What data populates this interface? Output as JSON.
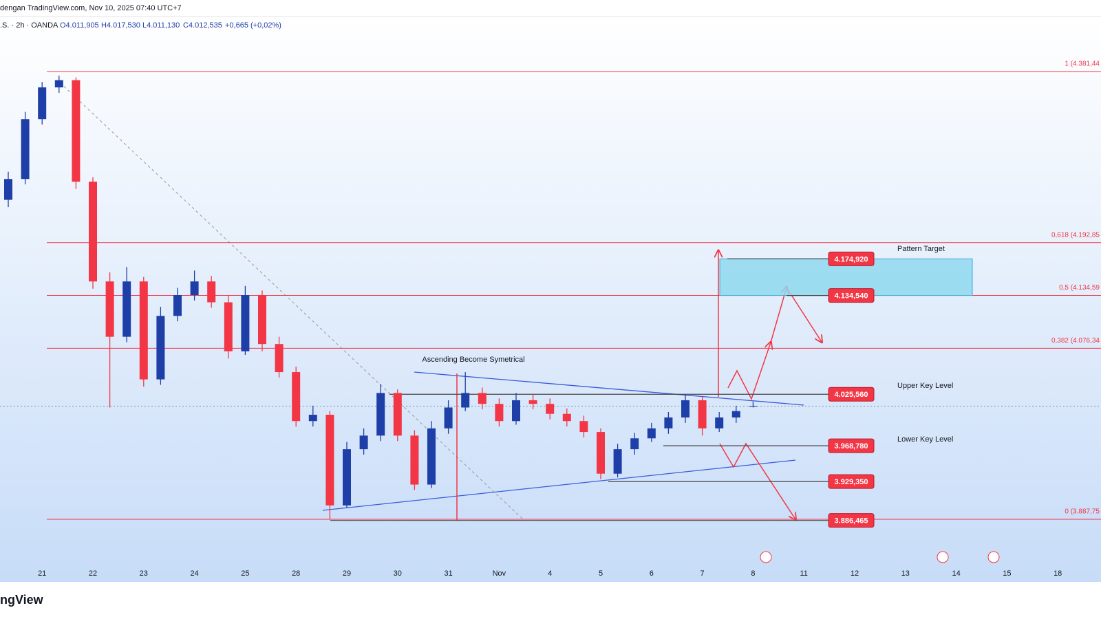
{
  "header": {
    "source": "dengan TradingView.com, Nov 10, 2025 07:40 UTC+7",
    "symbol": ".S. · 2h · OANDA",
    "open": "O4.011,905",
    "high": "H4.017,530",
    "low": "L4.011,130",
    "close": "C4.012,535",
    "change": "+0,665 (+0,02%)"
  },
  "chart_data": {
    "type": "candlestick",
    "xtick_labels": [
      "21",
      "22",
      "23",
      "24",
      "25",
      "28",
      "29",
      "30",
      "31",
      "Nov",
      "4",
      "5",
      "6",
      "7",
      "8",
      "11",
      "12",
      "13",
      "14",
      "15",
      "18"
    ],
    "open": [
      4240,
      4263,
      4329,
      4364,
      4372,
      4260,
      4150,
      4089,
      4150,
      4042,
      4112,
      4135,
      4150,
      4127,
      4073,
      4135,
      4081,
      4050,
      3996,
      4003,
      3903,
      3965,
      3980,
      4027,
      3980,
      3926,
      3988,
      4011,
      4027,
      4015,
      3996,
      4019,
      4015,
      4004,
      3996,
      3984,
      3938,
      3965,
      3977,
      3988,
      4000,
      4019,
      3988,
      4000,
      4011.905
    ],
    "high": [
      4271,
      4337,
      4370,
      4377,
      4375,
      4265,
      4160,
      4166,
      4155,
      4122,
      4143,
      4162,
      4156,
      4135,
      4145,
      4140,
      4089,
      4056,
      4013,
      4007,
      3973,
      3988,
      4037,
      4031,
      3986,
      3996,
      4019,
      4050,
      4033,
      4021,
      4027,
      4025,
      4021,
      4010,
      4002,
      3988,
      3971,
      3983,
      3994,
      4006,
      4025,
      4023,
      4006,
      4013,
      4017.53
    ],
    "low": [
      4232,
      4257,
      4323,
      4358,
      4252,
      4142,
      4011,
      4083,
      4034,
      4036,
      4106,
      4129,
      4121,
      4065,
      4069,
      4073,
      4044,
      3990,
      3990,
      3887.75,
      3900,
      3959,
      3974,
      3974,
      3920,
      3922,
      3982,
      4007,
      4009,
      3990,
      3992,
      4009,
      3998,
      3990,
      3978,
      3932,
      3934,
      3959,
      3973,
      3982,
      3994,
      3980,
      3984,
      3994,
      4011.13
    ],
    "close": [
      4263,
      4329,
      4364,
      4372,
      4260,
      4150,
      4089,
      4150,
      4042,
      4112,
      4135,
      4150,
      4127,
      4073,
      4135,
      4081,
      4050,
      3996,
      4003,
      3903,
      3965,
      3980,
      4027,
      3980,
      3926,
      3988,
      4011,
      4027,
      4015,
      3996,
      4019,
      4015,
      4004,
      3996,
      3984,
      3938,
      3965,
      3977,
      3988,
      4000,
      4019,
      3988,
      4000,
      4007,
      4012.535
    ],
    "up_color": "#1f3fa8",
    "down_color": "#f23645",
    "ylim": [
      3833.5,
      4421.7
    ],
    "fib_levels": [
      {
        "value": 4381.44,
        "label": "1 (4.381,44"
      },
      {
        "value": 4192.85,
        "label": "0,618 (4.192,85"
      },
      {
        "value": 4134.59,
        "label": "0,5 (4.134,59"
      },
      {
        "value": 4076.34,
        "label": "0,382 (4.076,34"
      },
      {
        "value": 3887.75,
        "label": "0 (3.887,75"
      }
    ],
    "key_levels": [
      {
        "value": 4174.92,
        "label": "4.174,920"
      },
      {
        "value": 4134.54,
        "label": "4.134,540"
      },
      {
        "value": 4025.56,
        "label": "4.025,560"
      },
      {
        "value": 3968.78,
        "label": "3.968,780"
      },
      {
        "value": 3929.35,
        "label": "3.929,350"
      },
      {
        "value": 3886.465,
        "label": "3.886,465"
      }
    ],
    "annotations": {
      "pattern": "Ascending Become Symetrical",
      "target": "Pattern Target",
      "upper": "Upper Key Level",
      "lower": "Lower Key Level"
    }
  },
  "footer": "ngView"
}
